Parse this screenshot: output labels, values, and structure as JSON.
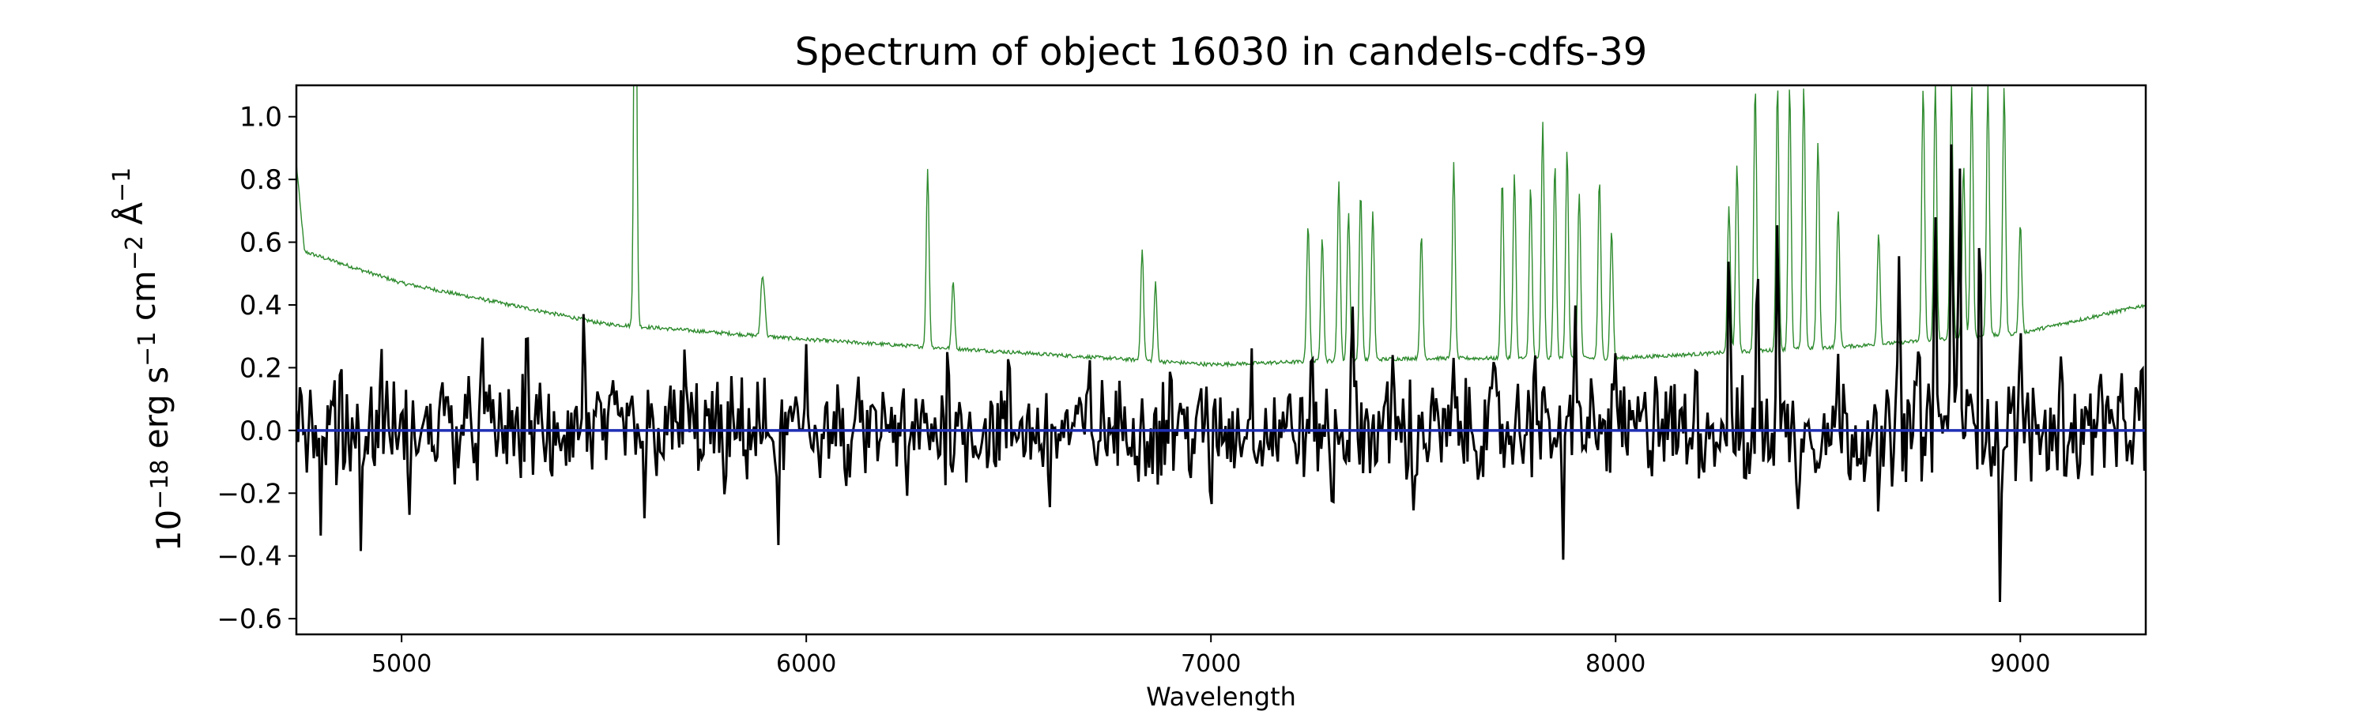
{
  "chart_data": {
    "type": "line",
    "title": "Spectrum of object 16030 in candels-cdfs-39",
    "xlabel": "Wavelength",
    "ylabel": "10^{-18} erg s^{-1} cm^{-2} Å^{-1}",
    "xlim": [
      4740,
      9310
    ],
    "ylim": [
      -0.65,
      1.1
    ],
    "xticks": [
      5000,
      6000,
      7000,
      8000,
      9000
    ],
    "yticks": [
      -0.6,
      -0.4,
      -0.2,
      0.0,
      0.2,
      0.4,
      0.6,
      0.8,
      1.0
    ],
    "grid": false,
    "legend": "none",
    "series": [
      {
        "role": "sky/error spectrum",
        "color": "#2e8b2e",
        "continuum": {
          "x": [
            4740,
            4760,
            5000,
            5500,
            6000,
            6500,
            7000,
            7500,
            8000,
            8300,
            8600,
            9000,
            9310
          ],
          "y": [
            0.85,
            0.57,
            0.47,
            0.34,
            0.29,
            0.25,
            0.21,
            0.23,
            0.23,
            0.25,
            0.27,
            0.31,
            0.4
          ]
        },
        "features": {
          "x": [
            5578,
            5577,
            5890,
            5896,
            6300,
            6363,
            6830,
            6863,
            7240,
            7275,
            7316,
            7340,
            7370,
            7400,
            7520,
            7600,
            7720,
            7750,
            7790,
            7820,
            7850,
            7880,
            7910,
            7960,
            7990,
            8280,
            8300,
            8345,
            8400,
            8430,
            8465,
            8500,
            8550,
            8650,
            8760,
            8790,
            8830,
            8860,
            8880,
            8920,
            8960,
            9000
          ],
          "y": [
            1.1,
            1.1,
            0.45,
            0.42,
            0.83,
            0.48,
            0.58,
            0.47,
            0.66,
            0.62,
            0.8,
            0.7,
            0.76,
            0.7,
            0.62,
            0.85,
            0.8,
            0.82,
            0.78,
            0.98,
            0.85,
            0.9,
            0.76,
            0.8,
            0.64,
            0.72,
            0.85,
            1.1,
            1.1,
            1.1,
            1.1,
            0.92,
            0.7,
            0.63,
            1.1,
            1.1,
            1.1,
            0.85,
            1.1,
            1.1,
            1.1,
            0.66
          ]
        }
      },
      {
        "role": "object spectrum",
        "color": "#000000",
        "peaks": {
          "x": [
            4750,
            4800,
            4850,
            4900,
            4950,
            5020,
            5100,
            5200,
            5310,
            5370,
            5450,
            5600,
            5700,
            5800,
            5930,
            6000,
            6100,
            6250,
            6350,
            6500,
            6600,
            6700,
            6900,
            7000,
            7100,
            7250,
            7300,
            7350,
            7450,
            7500,
            7600,
            7700,
            7800,
            7870,
            7900,
            8000,
            8100,
            8200,
            8280,
            8320,
            8350,
            8400,
            8450,
            8550,
            8650,
            8700,
            8750,
            8790,
            8830,
            8850,
            8900,
            8950,
            9000,
            9100,
            9200,
            9300
          ],
          "y": [
            0.22,
            -0.35,
            0.26,
            -0.42,
            0.28,
            -0.3,
            0.22,
            0.3,
            0.44,
            -0.25,
            0.4,
            -0.28,
            0.32,
            -0.3,
            -0.47,
            0.28,
            -0.26,
            -0.25,
            0.32,
            0.25,
            -0.3,
            0.24,
            0.25,
            -0.3,
            0.28,
            0.28,
            -0.33,
            0.4,
            0.3,
            -0.29,
            0.24,
            0.26,
            0.38,
            -0.44,
            0.45,
            0.28,
            0.24,
            0.26,
            0.66,
            -0.23,
            0.66,
            0.75,
            -0.28,
            0.25,
            -0.37,
            0.58,
            0.4,
            0.75,
            1.05,
            0.98,
            0.88,
            -0.57,
            0.38,
            0.24,
            0.24,
            0.26
          ]
        }
      },
      {
        "role": "zero level",
        "color": "#1f2fb3",
        "value": 0.0
      }
    ]
  }
}
